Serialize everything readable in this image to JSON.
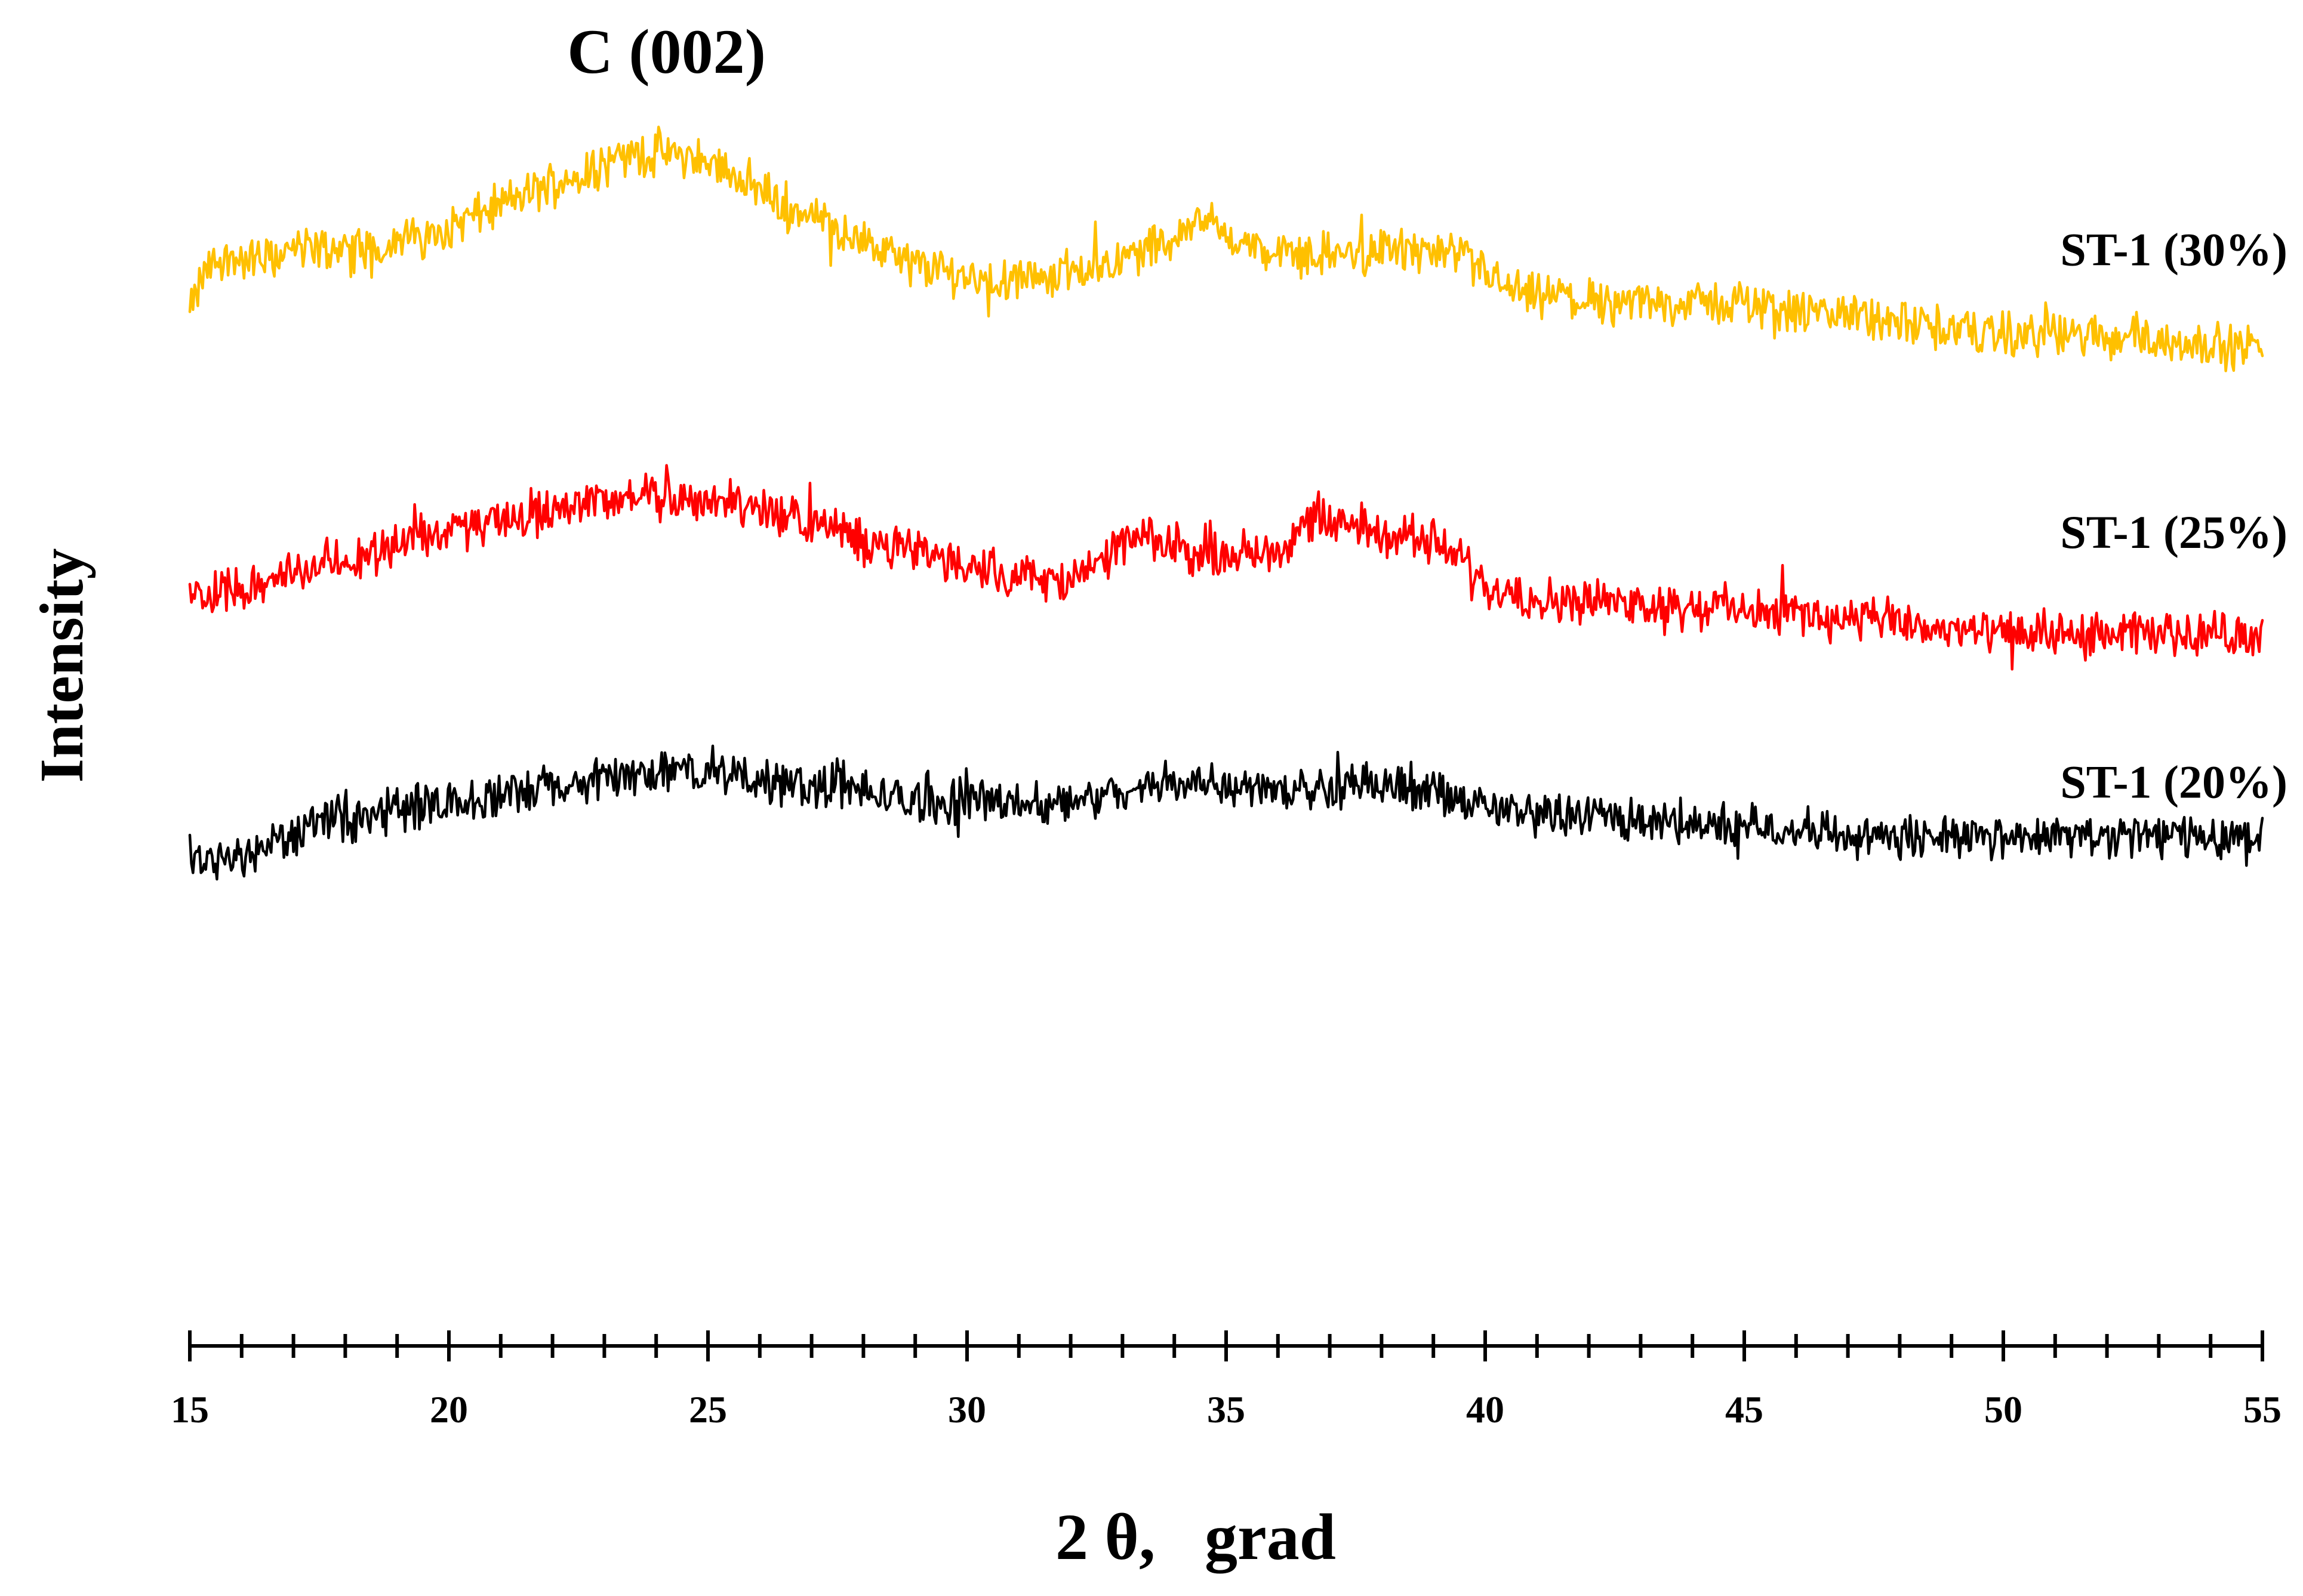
{
  "chart_data": {
    "type": "line",
    "title": "",
    "annotation": "C (002)",
    "annotation_x": 24.2,
    "xlabel": "2 θ,   grad",
    "ylabel": "Intensity",
    "xlim": [
      15,
      55
    ],
    "xticks_major": [
      15,
      20,
      25,
      30,
      35,
      40,
      45,
      50,
      55
    ],
    "xticks_minor_step": 1,
    "ylim": [
      0,
      100
    ],
    "y_ticks_shown": false,
    "grid": false,
    "legend": "labels at right end of each curve",
    "series": [
      {
        "name": "ST-1 (30%)",
        "color": "#FFC000",
        "points": [
          [
            15.0,
            81
          ],
          [
            15.3,
            85
          ],
          [
            15.6,
            86
          ],
          [
            16.0,
            86
          ],
          [
            16.5,
            86
          ],
          [
            17.0,
            87
          ],
          [
            17.5,
            87
          ],
          [
            18.0,
            87
          ],
          [
            18.5,
            87
          ],
          [
            19.0,
            88
          ],
          [
            19.5,
            88
          ],
          [
            20.0,
            89
          ],
          [
            20.5,
            90
          ],
          [
            21.0,
            91
          ],
          [
            21.5,
            92
          ],
          [
            22.0,
            93
          ],
          [
            22.5,
            94
          ],
          [
            23.0,
            95
          ],
          [
            23.5,
            95.5
          ],
          [
            24.0,
            96
          ],
          [
            24.5,
            95.5
          ],
          [
            25.0,
            95
          ],
          [
            25.5,
            94
          ],
          [
            26.0,
            92.5
          ],
          [
            26.5,
            91
          ],
          [
            27.0,
            90
          ],
          [
            27.5,
            89
          ],
          [
            28.0,
            87.5
          ],
          [
            28.5,
            86.5
          ],
          [
            29.0,
            85.5
          ],
          [
            29.5,
            85
          ],
          [
            30.0,
            84.5
          ],
          [
            30.5,
            84
          ],
          [
            31.0,
            84
          ],
          [
            31.5,
            84.5
          ],
          [
            32.0,
            85
          ],
          [
            32.5,
            85.5
          ],
          [
            33.0,
            86
          ],
          [
            33.5,
            87
          ],
          [
            34.0,
            88
          ],
          [
            34.5,
            90
          ],
          [
            35.0,
            88.5
          ],
          [
            35.5,
            87
          ],
          [
            36.0,
            86.5
          ],
          [
            36.5,
            86.5
          ],
          [
            37.0,
            86.5
          ],
          [
            37.5,
            86.5
          ],
          [
            38.0,
            87
          ],
          [
            38.5,
            87
          ],
          [
            39.0,
            86.5
          ],
          [
            39.5,
            86
          ],
          [
            40.0,
            85
          ],
          [
            40.5,
            83
          ],
          [
            41.0,
            82.5
          ],
          [
            41.5,
            82.5
          ],
          [
            42.0,
            82
          ],
          [
            42.5,
            82
          ],
          [
            43.0,
            82
          ],
          [
            43.5,
            82
          ],
          [
            44.0,
            82
          ],
          [
            44.5,
            82
          ],
          [
            45.0,
            82
          ],
          [
            45.5,
            81.5
          ],
          [
            46.0,
            81
          ],
          [
            46.5,
            81
          ],
          [
            47.0,
            81
          ],
          [
            47.5,
            80.5
          ],
          [
            48.0,
            80
          ],
          [
            48.5,
            80
          ],
          [
            49.0,
            79.5
          ],
          [
            49.5,
            79.5
          ],
          [
            50.0,
            79
          ],
          [
            50.5,
            79
          ],
          [
            51.0,
            79
          ],
          [
            51.5,
            79
          ],
          [
            52.0,
            79
          ],
          [
            52.5,
            79
          ],
          [
            53.0,
            78.5
          ],
          [
            53.5,
            78.5
          ],
          [
            54.0,
            78
          ],
          [
            54.5,
            78
          ],
          [
            55.0,
            78
          ]
        ],
        "label_y": 87
      },
      {
        "name": "ST-1 (25%)",
        "color": "#FF0000",
        "points": [
          [
            15.0,
            55
          ],
          [
            15.5,
            55.5
          ],
          [
            16.0,
            56
          ],
          [
            16.5,
            56.5
          ],
          [
            17.0,
            57
          ],
          [
            17.5,
            58
          ],
          [
            18.0,
            58.5
          ],
          [
            18.5,
            59
          ],
          [
            19.0,
            60
          ],
          [
            19.5,
            60.5
          ],
          [
            20.0,
            61
          ],
          [
            20.5,
            61.5
          ],
          [
            21.0,
            62
          ],
          [
            21.5,
            62.5
          ],
          [
            22.0,
            63
          ],
          [
            22.5,
            63.5
          ],
          [
            23.0,
            64
          ],
          [
            23.5,
            64
          ],
          [
            24.0,
            64
          ],
          [
            24.5,
            64
          ],
          [
            25.0,
            64
          ],
          [
            25.5,
            63.5
          ],
          [
            26.0,
            63
          ],
          [
            26.5,
            62.5
          ],
          [
            27.0,
            62
          ],
          [
            27.5,
            61
          ],
          [
            28.0,
            60
          ],
          [
            28.5,
            59.5
          ],
          [
            29.0,
            59
          ],
          [
            29.5,
            58.5
          ],
          [
            30.0,
            58
          ],
          [
            30.5,
            57.5
          ],
          [
            31.0,
            57
          ],
          [
            31.5,
            56.5
          ],
          [
            32.0,
            56.5
          ],
          [
            32.5,
            57.5
          ],
          [
            33.0,
            60
          ],
          [
            33.5,
            60
          ],
          [
            34.0,
            59.5
          ],
          [
            34.5,
            59
          ],
          [
            35.0,
            59
          ],
          [
            35.5,
            59
          ],
          [
            36.0,
            59.5
          ],
          [
            36.5,
            61.5
          ],
          [
            37.0,
            62
          ],
          [
            37.5,
            61.5
          ],
          [
            38.0,
            61
          ],
          [
            38.5,
            60.5
          ],
          [
            39.0,
            60
          ],
          [
            39.5,
            58.5
          ],
          [
            40.0,
            56
          ],
          [
            40.5,
            55.5
          ],
          [
            41.0,
            55
          ],
          [
            41.5,
            54.5
          ],
          [
            42.0,
            54.5
          ],
          [
            42.5,
            54.5
          ],
          [
            43.0,
            54.5
          ],
          [
            43.5,
            54
          ],
          [
            44.0,
            54
          ],
          [
            44.5,
            54
          ],
          [
            45.0,
            54
          ],
          [
            45.5,
            53.5
          ],
          [
            46.0,
            53.5
          ],
          [
            46.5,
            53
          ],
          [
            47.0,
            53
          ],
          [
            47.5,
            53
          ],
          [
            48.0,
            52.5
          ],
          [
            48.5,
            52
          ],
          [
            49.0,
            52
          ],
          [
            49.5,
            51.5
          ],
          [
            50.0,
            51.5
          ],
          [
            50.5,
            51.5
          ],
          [
            51.0,
            51.5
          ],
          [
            51.5,
            51.5
          ],
          [
            52.0,
            51.5
          ],
          [
            52.5,
            51.5
          ],
          [
            53.0,
            51.5
          ],
          [
            53.5,
            51.5
          ],
          [
            54.0,
            51.5
          ],
          [
            54.5,
            51.5
          ],
          [
            55.0,
            51.5
          ]
        ],
        "label_y": 61
      },
      {
        "name": "ST-1 (20%)",
        "color": "#000000",
        "points": [
          [
            15.0,
            30
          ],
          [
            15.5,
            30.5
          ],
          [
            16.0,
            31
          ],
          [
            16.5,
            32
          ],
          [
            17.0,
            33
          ],
          [
            17.5,
            34
          ],
          [
            18.0,
            34.5
          ],
          [
            18.5,
            35
          ],
          [
            19.0,
            35.5
          ],
          [
            19.5,
            36
          ],
          [
            20.0,
            36
          ],
          [
            20.5,
            36.5
          ],
          [
            21.0,
            36.5
          ],
          [
            21.5,
            37
          ],
          [
            22.0,
            37.5
          ],
          [
            22.5,
            37.5
          ],
          [
            23.0,
            38
          ],
          [
            23.5,
            38.5
          ],
          [
            24.0,
            39
          ],
          [
            24.5,
            39
          ],
          [
            25.0,
            38.5
          ],
          [
            25.5,
            38.5
          ],
          [
            26.0,
            38
          ],
          [
            26.5,
            38
          ],
          [
            27.0,
            37.5
          ],
          [
            27.5,
            37.5
          ],
          [
            28.0,
            37
          ],
          [
            28.5,
            36.5
          ],
          [
            29.0,
            36
          ],
          [
            29.5,
            36
          ],
          [
            30.0,
            36
          ],
          [
            30.5,
            36
          ],
          [
            31.0,
            36
          ],
          [
            31.5,
            36
          ],
          [
            32.0,
            36
          ],
          [
            32.5,
            36.5
          ],
          [
            33.0,
            37
          ],
          [
            33.5,
            37.5
          ],
          [
            34.0,
            38
          ],
          [
            34.5,
            38
          ],
          [
            35.0,
            38
          ],
          [
            35.5,
            37.5
          ],
          [
            36.0,
            37
          ],
          [
            36.5,
            37.5
          ],
          [
            37.0,
            37.5
          ],
          [
            37.5,
            38
          ],
          [
            38.0,
            37.5
          ],
          [
            38.5,
            37
          ],
          [
            39.0,
            37
          ],
          [
            39.5,
            36.5
          ],
          [
            40.0,
            35.5
          ],
          [
            40.5,
            35
          ],
          [
            41.0,
            35
          ],
          [
            41.5,
            35
          ],
          [
            42.0,
            35
          ],
          [
            42.5,
            34.5
          ],
          [
            43.0,
            34.5
          ],
          [
            43.5,
            34
          ],
          [
            44.0,
            34
          ],
          [
            44.5,
            34
          ],
          [
            45.0,
            34
          ],
          [
            45.5,
            33.5
          ],
          [
            46.0,
            33.5
          ],
          [
            46.5,
            33.5
          ],
          [
            47.0,
            33
          ],
          [
            47.5,
            33
          ],
          [
            48.0,
            33
          ],
          [
            48.5,
            33
          ],
          [
            49.0,
            33
          ],
          [
            49.5,
            33
          ],
          [
            50.0,
            33
          ],
          [
            50.5,
            33
          ],
          [
            51.0,
            33
          ],
          [
            51.5,
            33
          ],
          [
            52.0,
            33
          ],
          [
            52.5,
            33
          ],
          [
            53.0,
            33
          ],
          [
            53.5,
            33
          ],
          [
            54.0,
            33
          ],
          [
            54.5,
            33
          ],
          [
            55.0,
            33
          ]
        ],
        "label_y": 38
      }
    ]
  }
}
